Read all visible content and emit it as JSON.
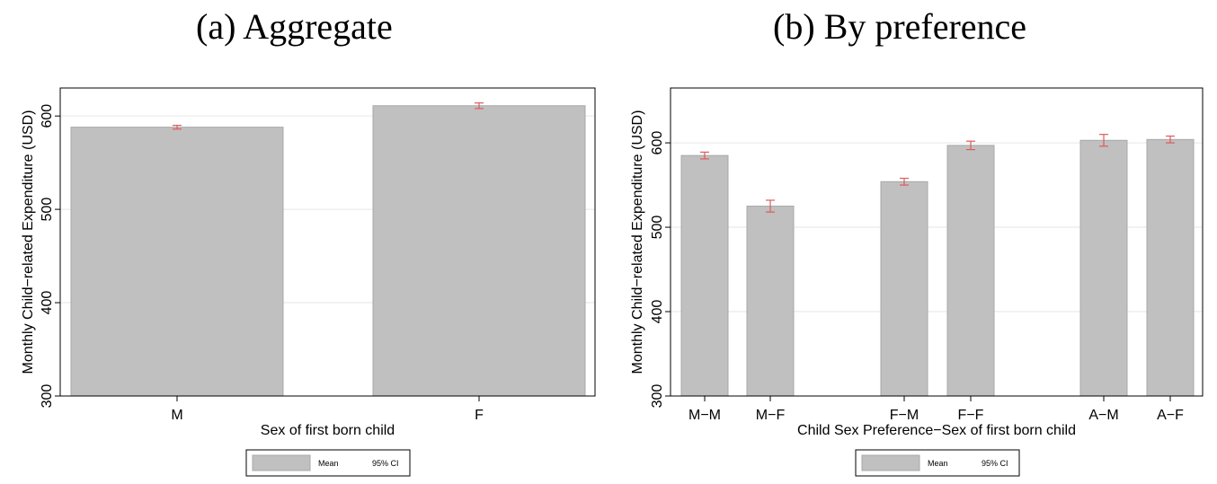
{
  "chart_data": [
    {
      "type": "bar",
      "title": "(a) Aggregate",
      "xlabel": "Sex of first born child",
      "ylabel": "Monthly Child−related Expenditure (USD)",
      "ylim": [
        300,
        630
      ],
      "yticks": [
        "300",
        "400",
        "500",
        "600"
      ],
      "categories": [
        "M",
        "F"
      ],
      "series": [
        {
          "name": "Mean",
          "values": [
            588,
            611
          ]
        },
        {
          "name": "95% CI",
          "lower": [
            586,
            608
          ],
          "upper": [
            590,
            614
          ]
        }
      ],
      "grid": true,
      "legend_position": "bottom",
      "colors": {
        "bar": "#c0c0c0",
        "bar_edge": "#a8a8a8",
        "ci": "#e05a5a",
        "grid": "#e6e6e6"
      }
    },
    {
      "type": "bar",
      "title": "(b) By preference",
      "xlabel": "Child Sex Preference−Sex of first born child",
      "ylabel": "Monthly Child−related Expenditure (USD)",
      "ylim": [
        300,
        665
      ],
      "yticks": [
        "300",
        "400",
        "500",
        "600"
      ],
      "categories": [
        "M−M",
        "M−F",
        "F−M",
        "F−F",
        "A−M",
        "A−F"
      ],
      "series": [
        {
          "name": "Mean",
          "values": [
            585,
            525,
            554,
            597,
            603,
            604
          ]
        },
        {
          "name": "95% CI",
          "lower": [
            581,
            518,
            550,
            592,
            596,
            600
          ],
          "upper": [
            589,
            532,
            558,
            602,
            610,
            608
          ]
        }
      ],
      "grid": true,
      "legend_position": "bottom",
      "colors": {
        "bar": "#c0c0c0",
        "bar_edge": "#a8a8a8",
        "ci": "#e05a5a",
        "grid": "#e6e6e6"
      }
    }
  ]
}
